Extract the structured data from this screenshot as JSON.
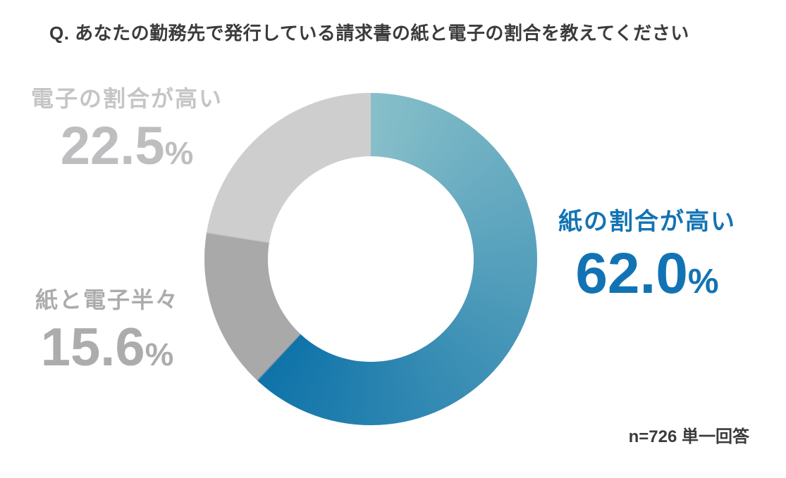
{
  "header": {
    "title": "Q. あなたの勤務先で発行している請求書の紙と電子の割合を教えてください"
  },
  "callouts": {
    "paper_high": {
      "label": "紙の割合が高い",
      "value": "62.0",
      "unit": "%",
      "color": "#1273b4"
    },
    "half_half": {
      "label": "紙と電子半々",
      "value": "15.6",
      "unit": "%",
      "color": "#acacac"
    },
    "electronic_high": {
      "label": "電子の割合が高い",
      "value": "22.5",
      "unit": "%",
      "color": "#c5c5c7"
    }
  },
  "footer": {
    "note": "n=726 単一回答"
  },
  "chart_data": {
    "type": "pie",
    "subtype": "donut",
    "title": "Q. あなたの勤務先で発行している請求書の紙と電子の割合を教えてください",
    "sample_note": "n=726 単一回答",
    "unit": "%",
    "start_angle_deg": 0,
    "direction": "clockwise",
    "inner_radius_ratio": 0.619,
    "categories": [
      "紙の割合が高い",
      "紙と電子半々",
      "電子の割合が高い"
    ],
    "values": [
      62.0,
      15.6,
      22.5
    ],
    "segments": [
      {
        "label": "紙の割合が高い",
        "value": 62.0,
        "gradient": [
          "#87bfc9",
          "#0f73a9"
        ]
      },
      {
        "label": "紙と電子半々",
        "value": 15.6,
        "color": "#a9a9a9"
      },
      {
        "label": "電子の割合が高い",
        "value": 22.5,
        "color": "#cecece"
      }
    ],
    "legend": "none",
    "labels": "outside callouts with percentages"
  }
}
